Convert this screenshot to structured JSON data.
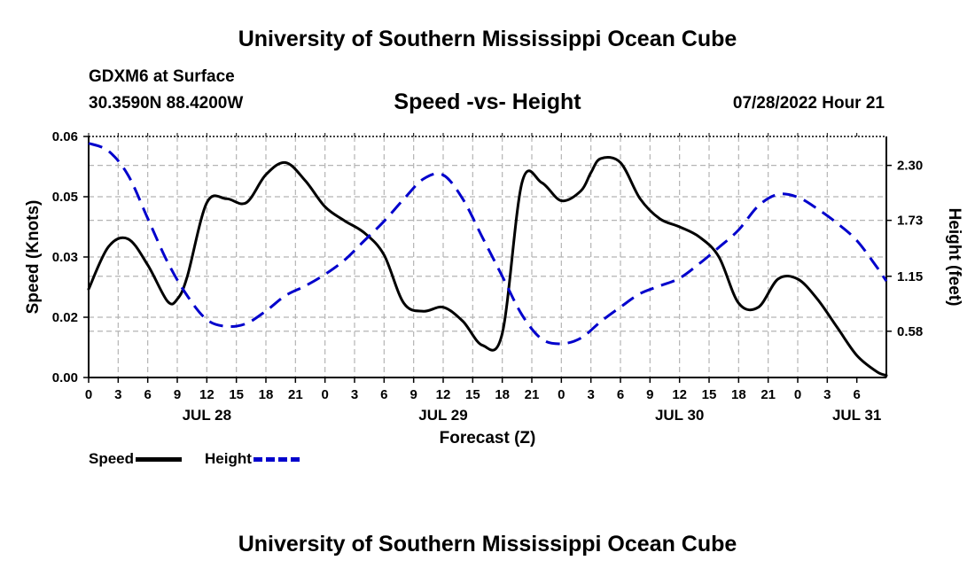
{
  "page": {
    "title_top": "University of Southern Mississippi Ocean Cube",
    "title_bottom": "University of Southern Mississippi Ocean Cube",
    "station": "GDXM6 at Surface",
    "coords": "30.3590N   88.4200W",
    "subtitle": "Speed -vs- Height",
    "datetime": "07/28/2022 Hour 21"
  },
  "legend": {
    "speed_label": "Speed",
    "height_label": "Height"
  },
  "colors": {
    "speed": "#000000",
    "height": "#0000cc",
    "grid": "#b4b4b4"
  },
  "chart_data": {
    "type": "line",
    "title": "Speed -vs- Height",
    "xlabel": "Forecast (Z)",
    "ylabel_left": "Speed (Knots)",
    "ylabel_right": "Height (feet)",
    "ylim_left": [
      0,
      0.06
    ],
    "ylim_right": [
      0.1,
      2.6
    ],
    "xlim_hours": [
      0,
      81
    ],
    "left_ticks": [
      "0.00",
      "0.02",
      "0.03",
      "0.05",
      "0.06"
    ],
    "left_tick_values": [
      0.0,
      0.015,
      0.03,
      0.045,
      0.06
    ],
    "right_ticks": [
      "0.58",
      "1.15",
      "1.73",
      "2.30"
    ],
    "right_tick_values": [
      0.58,
      1.15,
      1.73,
      2.3
    ],
    "x_tick_labels": [
      "0",
      "3",
      "6",
      "9",
      "12",
      "15",
      "18",
      "21",
      "0",
      "3",
      "6",
      "9",
      "12",
      "15",
      "18",
      "21",
      "0",
      "3",
      "6",
      "9",
      "12",
      "15",
      "18",
      "21",
      "0",
      "3",
      "6"
    ],
    "day_labels": [
      {
        "label": "JUL 28",
        "hour": 12
      },
      {
        "label": "JUL 29",
        "hour": 36
      },
      {
        "label": "JUL 30",
        "hour": 60
      },
      {
        "label": "JUL 31",
        "hour": 78
      }
    ],
    "grid": true,
    "series": [
      {
        "name": "Speed",
        "axis": "left",
        "style": "solid",
        "x": [
          0,
          2,
          4,
          6,
          8,
          9,
          10,
          12,
          14,
          16,
          18,
          20,
          22,
          24,
          26,
          28,
          30,
          32,
          34,
          36,
          38,
          40,
          42,
          44,
          46,
          48,
          50,
          51,
          52,
          54,
          56,
          58,
          60,
          62,
          64,
          66,
          68,
          70,
          72,
          74,
          76,
          78,
          80,
          81
        ],
        "y": [
          0.022,
          0.0325,
          0.0345,
          0.028,
          0.019,
          0.0195,
          0.025,
          0.0435,
          0.0445,
          0.0435,
          0.0505,
          0.0535,
          0.049,
          0.0425,
          0.039,
          0.036,
          0.0305,
          0.0185,
          0.0165,
          0.0175,
          0.014,
          0.008,
          0.011,
          0.0485,
          0.0485,
          0.044,
          0.0465,
          0.051,
          0.0545,
          0.0535,
          0.0445,
          0.0395,
          0.0375,
          0.035,
          0.03,
          0.0185,
          0.0175,
          0.0245,
          0.0245,
          0.0195,
          0.0125,
          0.0055,
          0.0015,
          0.0005
        ]
      },
      {
        "name": "Height",
        "axis": "right",
        "style": "dashed",
        "x": [
          0,
          2,
          4,
          6,
          8,
          10,
          12,
          14,
          16,
          18,
          20,
          22,
          24,
          26,
          28,
          30,
          32,
          34,
          36,
          38,
          40,
          42,
          44,
          46,
          48,
          50,
          52,
          54,
          56,
          58,
          60,
          62,
          64,
          66,
          68,
          70,
          72,
          74,
          76,
          78,
          80,
          81
        ],
        "y": [
          2.53,
          2.45,
          2.2,
          1.75,
          1.3,
          0.95,
          0.7,
          0.63,
          0.66,
          0.79,
          0.95,
          1.05,
          1.17,
          1.32,
          1.52,
          1.72,
          1.95,
          2.16,
          2.2,
          1.95,
          1.55,
          1.15,
          0.75,
          0.5,
          0.45,
          0.51,
          0.68,
          0.83,
          0.97,
          1.05,
          1.13,
          1.28,
          1.45,
          1.63,
          1.88,
          2.0,
          1.97,
          1.85,
          1.7,
          1.52,
          1.25,
          1.1
        ]
      }
    ]
  }
}
